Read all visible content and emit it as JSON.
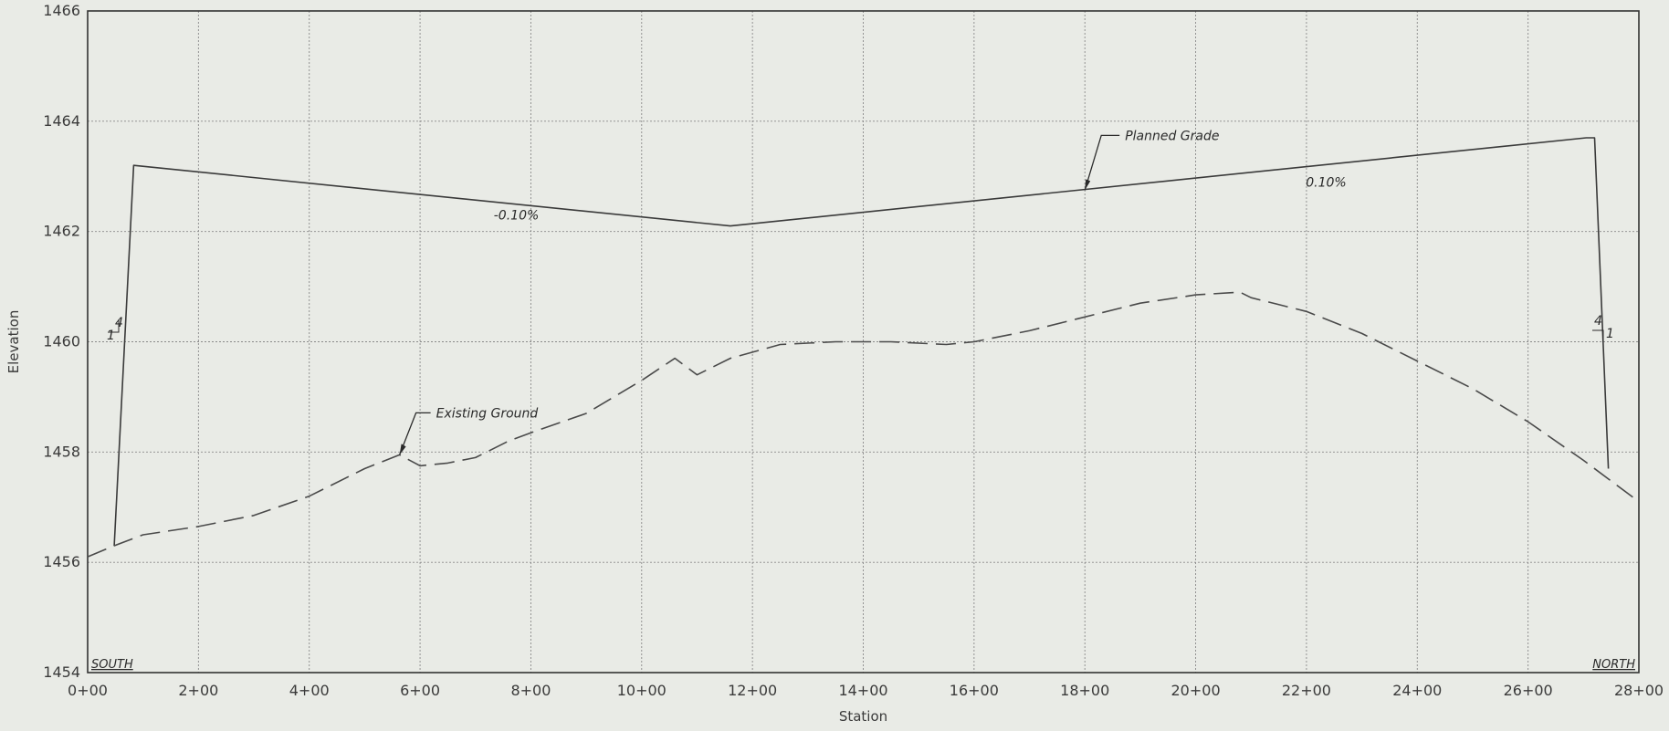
{
  "chart_data": {
    "type": "line",
    "xlabel": "Station",
    "ylabel": "Elevation",
    "xlim": [
      0,
      2800
    ],
    "ylim": [
      1454,
      1466
    ],
    "x_ticks": [
      {
        "value": 0,
        "label": "0+00"
      },
      {
        "value": 200,
        "label": "2+00"
      },
      {
        "value": 400,
        "label": "4+00"
      },
      {
        "value": 600,
        "label": "6+00"
      },
      {
        "value": 800,
        "label": "8+00"
      },
      {
        "value": 1000,
        "label": "10+00"
      },
      {
        "value": 1200,
        "label": "12+00"
      },
      {
        "value": 1400,
        "label": "14+00"
      },
      {
        "value": 1600,
        "label": "16+00"
      },
      {
        "value": 1800,
        "label": "18+00"
      },
      {
        "value": 2000,
        "label": "20+00"
      },
      {
        "value": 2200,
        "label": "22+00"
      },
      {
        "value": 2400,
        "label": "24+00"
      },
      {
        "value": 2600,
        "label": "26+00"
      },
      {
        "value": 2800,
        "label": "28+00"
      }
    ],
    "y_ticks": [
      {
        "value": 1454,
        "label": "1454"
      },
      {
        "value": 1456,
        "label": "1456"
      },
      {
        "value": 1458,
        "label": "1458"
      },
      {
        "value": 1460,
        "label": "1460"
      },
      {
        "value": 1462,
        "label": "1462"
      },
      {
        "value": 1464,
        "label": "1464"
      },
      {
        "value": 1466,
        "label": "1466"
      }
    ],
    "grid": true,
    "series": [
      {
        "name": "Planned Grade",
        "style": "solid",
        "color": "#3a3a3a",
        "x": [
          48,
          83,
          1160,
          2705,
          2720,
          2745
        ],
        "y": [
          1456.3,
          1463.2,
          1462.1,
          1463.7,
          1463.7,
          1457.7
        ]
      },
      {
        "name": "Existing Ground",
        "style": "dashed",
        "color": "#4a4a4a",
        "x": [
          0,
          48,
          100,
          200,
          300,
          400,
          440,
          500,
          563,
          600,
          650,
          700,
          760,
          800,
          900,
          1000,
          1060,
          1100,
          1160,
          1250,
          1350,
          1450,
          1550,
          1600,
          1700,
          1800,
          1900,
          2000,
          2080,
          2100,
          2200,
          2300,
          2400,
          2500,
          2600,
          2700,
          2800
        ],
        "y": [
          1456.1,
          1456.3,
          1456.5,
          1456.65,
          1456.85,
          1457.2,
          1457.4,
          1457.7,
          1457.95,
          1457.75,
          1457.8,
          1457.9,
          1458.2,
          1458.35,
          1458.7,
          1459.3,
          1459.7,
          1459.4,
          1459.7,
          1459.95,
          1460.0,
          1460.0,
          1459.95,
          1460.0,
          1460.2,
          1460.45,
          1460.7,
          1460.85,
          1460.9,
          1460.8,
          1460.55,
          1460.15,
          1459.65,
          1459.15,
          1458.55,
          1457.85,
          1457.1
        ]
      }
    ],
    "annotations": [
      {
        "text": "Planned Grade",
        "x": 1800,
        "y": 1462.75
      },
      {
        "text": "Existing Ground",
        "x": 563,
        "y": 1457.95
      },
      {
        "text": "-0.10%",
        "x": 700,
        "y": 1462.3
      },
      {
        "text": "0.10%",
        "x": 2100,
        "y": 1462.9
      },
      {
        "text": "4",
        "x": 60,
        "y": 1460.4
      },
      {
        "text": "4",
        "x": 2770,
        "y": 1460.3
      },
      {
        "text": "1",
        "x": 40,
        "y": 1460.1
      },
      {
        "text": "1",
        "x": 2788,
        "y": 1460.05
      },
      {
        "text": "SOUTH",
        "x": 0,
        "y": 1454
      },
      {
        "text": "NORTH",
        "x": 2800,
        "y": 1454
      }
    ]
  }
}
